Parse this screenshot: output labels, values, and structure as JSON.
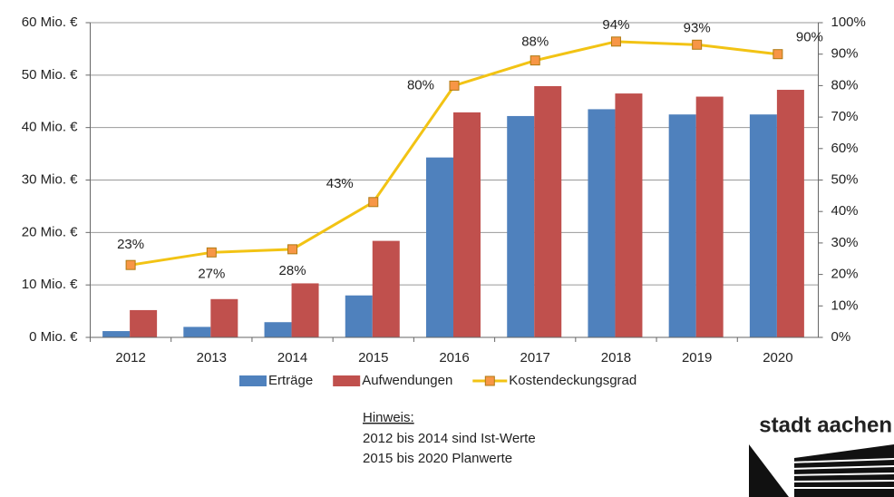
{
  "chart_data": {
    "type": "bar_line",
    "categories": [
      "2012",
      "2013",
      "2014",
      "2015",
      "2016",
      "2017",
      "2018",
      "2019",
      "2020"
    ],
    "series": [
      {
        "name": "Erträge",
        "type": "bar",
        "color": "#4f81bd",
        "values": [
          1.2,
          2.0,
          2.9,
          8.0,
          34.3,
          42.2,
          43.5,
          42.5,
          42.5
        ]
      },
      {
        "name": "Aufwendungen",
        "type": "bar",
        "color": "#c0504d",
        "values": [
          5.2,
          7.3,
          10.3,
          18.4,
          42.9,
          47.9,
          46.5,
          45.9,
          47.2
        ]
      },
      {
        "name": "Kostendeckungsgrad",
        "type": "line",
        "axis": "y2",
        "color": "#f2c314",
        "marker_color": "#f79646",
        "values": [
          23,
          27,
          28,
          43,
          80,
          88,
          94,
          93,
          90
        ],
        "value_labels": [
          "23%",
          "27%",
          "28%",
          "43%",
          "80%",
          "88%",
          "94%",
          "93%",
          "90%"
        ]
      }
    ],
    "ylim": [
      0,
      60
    ],
    "yticks": [
      {
        "value": 0,
        "label": "0 Mio. €"
      },
      {
        "value": 10,
        "label": "10 Mio. €"
      },
      {
        "value": 20,
        "label": "20 Mio. €"
      },
      {
        "value": 30,
        "label": "30 Mio. €"
      },
      {
        "value": 40,
        "label": "40 Mio. €"
      },
      {
        "value": 50,
        "label": "50 Mio. €"
      },
      {
        "value": 60,
        "label": "60 Mio. €"
      }
    ],
    "y2lim": [
      0,
      100
    ],
    "y2ticks": [
      {
        "value": 0,
        "label": "0%"
      },
      {
        "value": 10,
        "label": "10%"
      },
      {
        "value": 20,
        "label": "20%"
      },
      {
        "value": 30,
        "label": "30%"
      },
      {
        "value": 40,
        "label": "40%"
      },
      {
        "value": 50,
        "label": "50%"
      },
      {
        "value": 60,
        "label": "60%"
      },
      {
        "value": 70,
        "label": "70%"
      },
      {
        "value": 80,
        "label": "80%"
      },
      {
        "value": 90,
        "label": "90%"
      },
      {
        "value": 100,
        "label": "100%"
      }
    ],
    "grid": true,
    "legend": "bottom",
    "note": {
      "heading": "Hinweis:",
      "lines": [
        "2012 bis 2014 sind Ist-Werte",
        "2015 bis 2020 Planwerte"
      ]
    },
    "logo": "stadt aachen"
  }
}
